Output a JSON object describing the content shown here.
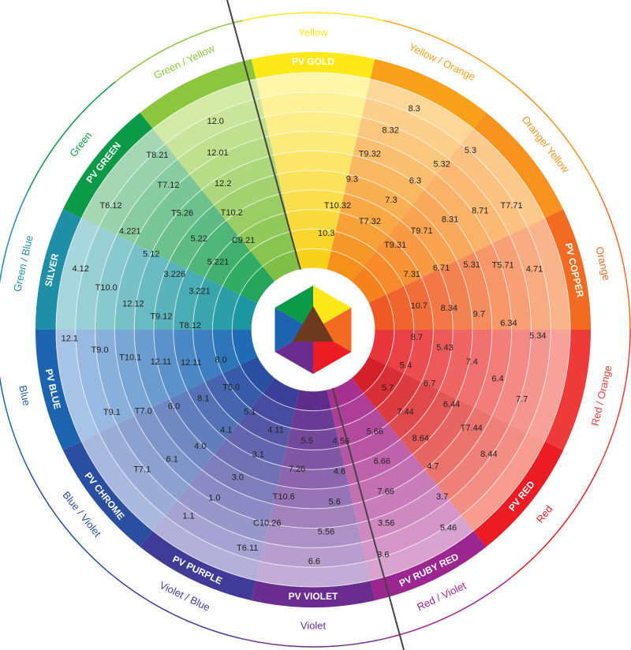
{
  "segments": [
    {
      "outer": "Yellow",
      "band": "PV GOLD",
      "color": "#ffe818",
      "light": "#fff6a8",
      "dark": "#f7d21d"
    },
    {
      "outer": "Yellow / Orange",
      "band": "",
      "color": "#f9a11b",
      "light": "#fdd79a",
      "dark": "#f5901b"
    },
    {
      "outer": "Orange/ Yellow",
      "band": "",
      "color": "#f8921e",
      "light": "#fcc98c",
      "dark": "#f6821f"
    },
    {
      "outer": "Orange",
      "band": "PV COPPER",
      "color": "#f36b21",
      "light": "#f9b48c",
      "dark": "#ef5a24"
    },
    {
      "outer": "Red / Orange",
      "band": "",
      "color": "#ee3b3a",
      "light": "#f7a19a",
      "dark": "#e8353b"
    },
    {
      "outer": "Red",
      "band": "PV RED",
      "color": "#ec1c24",
      "light": "#f79c8f",
      "dark": "#d4202a"
    },
    {
      "outer": "Red / Violet",
      "band": "PV RUBY RED",
      "color": "#9b2690",
      "light": "#d9a3cf",
      "dark": "#a8308f"
    },
    {
      "outer": "Violet",
      "band": "PV VIOLET",
      "color": "#6a2c8f",
      "light": "#c3acd6",
      "dark": "#5e2d8c"
    },
    {
      "outer": "Violet / Blue",
      "band": "PV PURPLE",
      "color": "#3f3b96",
      "light": "#b3b0d9",
      "dark": "#3b3f99"
    },
    {
      "outer": "Blue / Violet",
      "band": "PV CHROME",
      "color": "#2a4ea0",
      "light": "#a9b8de",
      "dark": "#294fa1"
    },
    {
      "outer": "Blue",
      "band": "PV BLUE",
      "color": "#1e63b0",
      "light": "#a7c3e6",
      "dark": "#1f6bb5"
    },
    {
      "outer": "Green / Blue",
      "band": "SILVER",
      "color": "#1f8fa8",
      "light": "#a7d6dc",
      "dark": "#1c97a0"
    },
    {
      "outer": "Green",
      "band": "PV GREEN",
      "color": "#0b9b48",
      "light": "#a6d7b5",
      "dark": "#24a55b"
    },
    {
      "outer": "Green / Yellow",
      "band": "",
      "color": "#8cc63f",
      "light": "#d3eaa6",
      "dark": "#7fbf45"
    }
  ],
  "numbers": [
    "10.3",
    "T10.32",
    "9.3",
    "T9.32",
    "8.32",
    "8.3",
    "T7.32",
    "7.3",
    "6.3",
    "5.32",
    "5.3",
    "T9.31",
    "T9.71",
    "8.31",
    "8.71",
    "T7.71",
    "7.31",
    "6.71",
    "5.31",
    "T5.71",
    "4.71",
    "10.7",
    "8.34",
    "9.7",
    "6.34",
    "5.34",
    "8.7",
    "5.43",
    "7.4",
    "6.4",
    "7.7",
    "5.4",
    "6.7",
    "6.44",
    "T7.44",
    "8.44",
    "5.7",
    "7.44",
    "8.64",
    "4.7",
    "3.7",
    "5.46",
    "5.66",
    "6.66",
    "7.66",
    "3.56",
    "3.6",
    "4.56",
    "4.6",
    "5.6",
    "5.56",
    "6.6",
    "5.5",
    "7.26",
    "T10.6",
    "C10.26",
    "T6.11",
    "4.11",
    "3.1",
    "3.0",
    "1.0",
    "1.1",
    "5.1",
    "4.1",
    "4.0",
    "6.1",
    "T7.1",
    "T5.0",
    "8.1",
    "6.0",
    "T7.0",
    "T9.1",
    "8.0",
    "12.11",
    "12.11",
    "T10.1",
    "T9.0",
    "12.1",
    "T8.12",
    "T9.12",
    "12.12",
    "T10.0",
    "4.12",
    "3.221",
    "3.226",
    "5.12",
    "4.221",
    "T6.12",
    "5.221",
    "5.22",
    "T5.26",
    "T7.12",
    "T8.21",
    "C9.21",
    "T10.2",
    "12.2",
    "12.01",
    "12.0"
  ],
  "center": {
    "top": "#ffe818",
    "right": "#f36b21",
    "lower_right": "#ec1c24",
    "bottom": "#6a2c8f",
    "lower_left": "#1e63b0",
    "left": "#0b9b48",
    "middle": "#6b3a1f"
  }
}
